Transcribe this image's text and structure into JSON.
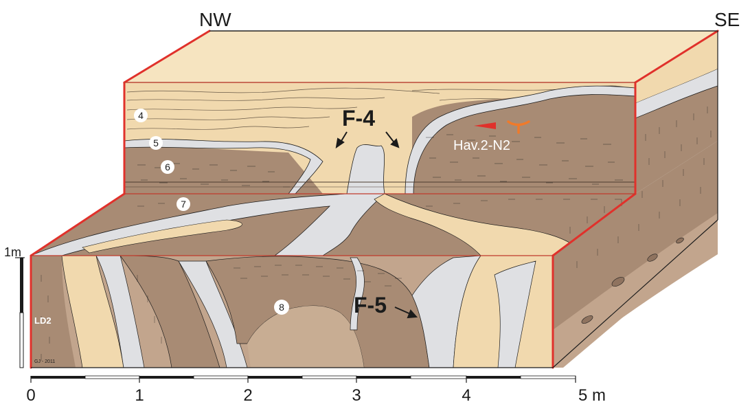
{
  "orientation": {
    "left": "NW",
    "right": "SE"
  },
  "features": {
    "f4": "F-4",
    "f5": "F-5",
    "station": "Hav.2-N2"
  },
  "layers": [
    {
      "id": "layer-4",
      "label": "4"
    },
    {
      "id": "layer-5",
      "label": "5"
    },
    {
      "id": "layer-6",
      "label": "6"
    },
    {
      "id": "layer-7",
      "label": "7"
    },
    {
      "id": "layer-8",
      "label": "8"
    }
  ],
  "vertical_scale": {
    "label": "1m"
  },
  "section": {
    "code": "LD2",
    "credit": "GJ - 2011"
  },
  "horizontal_scale": {
    "ticks": [
      "0",
      "1",
      "2",
      "3",
      "4",
      "5 m"
    ]
  },
  "colors": {
    "frame": "#e0312b",
    "sand": "#f1d9ae",
    "sand_light": "#f6e4c0",
    "silt": "#a88b74",
    "silt_dark": "#8f735f",
    "grey": "#dfe0e3",
    "ink": "#1b1b1b",
    "station_arrow": "#e0312b",
    "station_symbol": "#f07a2a"
  }
}
